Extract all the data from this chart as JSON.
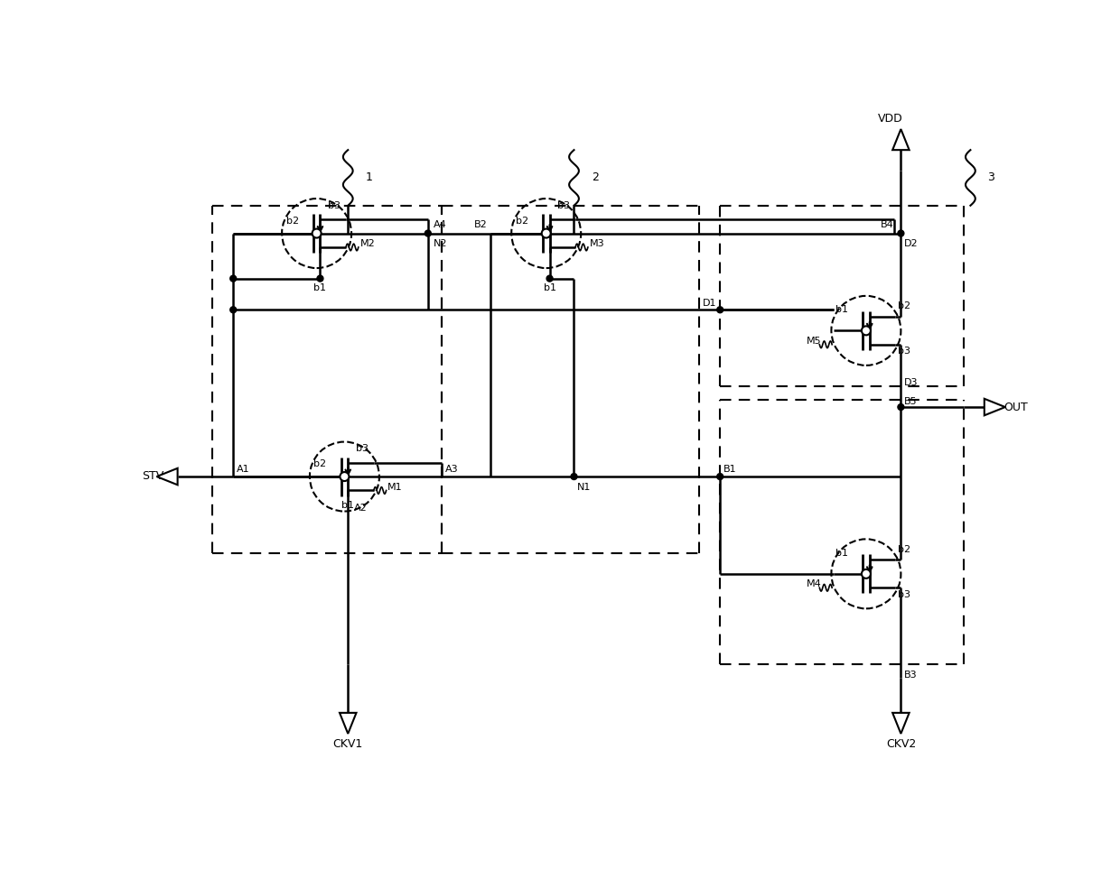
{
  "figsize": [
    12.4,
    9.74
  ],
  "dpi": 100,
  "xlim": [
    0,
    124
  ],
  "ylim": [
    0,
    97.4
  ],
  "bg_color": "#ffffff"
}
